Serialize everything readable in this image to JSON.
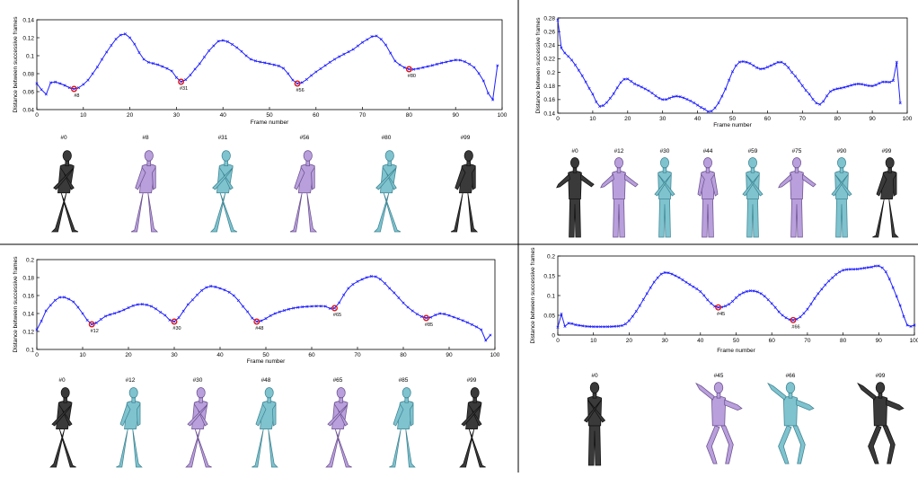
{
  "colors": {
    "line": "#2020ff",
    "marker": "#1a1aff",
    "highlight": "#e01010",
    "gray_figure": "#3a3a3a",
    "purple_figure": "#b9a0dc",
    "cyan_figure": "#7fc3cf",
    "divider": "#000000"
  },
  "panels": [
    {
      "chart_data": {
        "type": "line",
        "xlabel": "Frame number",
        "ylabel": "Distance between successive frames",
        "xlim": [
          0,
          100
        ],
        "ylim": [
          0.04,
          0.14
        ],
        "xticks": [
          "0",
          "10",
          "20",
          "30",
          "40",
          "50",
          "60",
          "70",
          "80",
          "90",
          "100"
        ],
        "yticks": [
          "0.04",
          "0.06",
          "0.08",
          "0.1",
          "0.12",
          "0.14"
        ],
        "anchors": [
          [
            0,
            0.069
          ],
          [
            2,
            0.057
          ],
          [
            3,
            0.07
          ],
          [
            5,
            0.069
          ],
          [
            8,
            0.063
          ],
          [
            10,
            0.068
          ],
          [
            12,
            0.08
          ],
          [
            15,
            0.104
          ],
          [
            18,
            0.123
          ],
          [
            20,
            0.12
          ],
          [
            23,
            0.096
          ],
          [
            26,
            0.09
          ],
          [
            29,
            0.083
          ],
          [
            31,
            0.071
          ],
          [
            34,
            0.085
          ],
          [
            38,
            0.111
          ],
          [
            40,
            0.117
          ],
          [
            43,
            0.109
          ],
          [
            46,
            0.096
          ],
          [
            50,
            0.091
          ],
          [
            53,
            0.086
          ],
          [
            56,
            0.069
          ],
          [
            60,
            0.082
          ],
          [
            64,
            0.096
          ],
          [
            68,
            0.107
          ],
          [
            71,
            0.118
          ],
          [
            73,
            0.122
          ],
          [
            75,
            0.112
          ],
          [
            77,
            0.094
          ],
          [
            80,
            0.085
          ],
          [
            84,
            0.088
          ],
          [
            88,
            0.093
          ],
          [
            91,
            0.095
          ],
          [
            94,
            0.087
          ],
          [
            96,
            0.072
          ],
          [
            98,
            0.051
          ],
          [
            99,
            0.089
          ]
        ],
        "highlights": [
          [
            8,
            0.063,
            "#8"
          ],
          [
            31,
            0.071,
            "#31"
          ],
          [
            56,
            0.069,
            "#56"
          ],
          [
            80,
            0.085,
            "#80"
          ]
        ]
      },
      "figures": [
        {
          "label": "#0",
          "color": "gray",
          "pose": "walk"
        },
        {
          "label": "#8",
          "color": "purple",
          "pose": "walk"
        },
        {
          "label": "#31",
          "color": "cyan",
          "pose": "walk"
        },
        {
          "label": "#56",
          "color": "purple",
          "pose": "walk"
        },
        {
          "label": "#80",
          "color": "cyan",
          "pose": "walk"
        },
        {
          "label": "#99",
          "color": "gray",
          "pose": "walk"
        }
      ]
    },
    {
      "chart_data": {
        "type": "line",
        "xlabel": "Frame number",
        "ylabel": "Distance between successive frames",
        "xlim": [
          0,
          100
        ],
        "ylim": [
          0.14,
          0.28
        ],
        "xticks": [
          "0",
          "10",
          "20",
          "30",
          "40",
          "50",
          "60",
          "70",
          "80",
          "90",
          "100"
        ],
        "yticks": [
          "0.14",
          "0.16",
          "0.18",
          "0.2",
          "0.22",
          "0.24",
          "0.26",
          "0.28"
        ],
        "anchors": [
          [
            0,
            0.277
          ],
          [
            1,
            0.236
          ],
          [
            4,
            0.218
          ],
          [
            7,
            0.195
          ],
          [
            10,
            0.168
          ],
          [
            12,
            0.15
          ],
          [
            15,
            0.162
          ],
          [
            19,
            0.19
          ],
          [
            22,
            0.183
          ],
          [
            26,
            0.173
          ],
          [
            30,
            0.16
          ],
          [
            34,
            0.165
          ],
          [
            38,
            0.158
          ],
          [
            42,
            0.146
          ],
          [
            44,
            0.143
          ],
          [
            47,
            0.165
          ],
          [
            51,
            0.21
          ],
          [
            54,
            0.215
          ],
          [
            58,
            0.205
          ],
          [
            61,
            0.21
          ],
          [
            64,
            0.215
          ],
          [
            67,
            0.2
          ],
          [
            72,
            0.168
          ],
          [
            75,
            0.153
          ],
          [
            78,
            0.172
          ],
          [
            82,
            0.178
          ],
          [
            86,
            0.183
          ],
          [
            90,
            0.18
          ],
          [
            93,
            0.186
          ],
          [
            96,
            0.188
          ],
          [
            97,
            0.215
          ],
          [
            98,
            0.155
          ]
        ],
        "highlights": []
      },
      "figures": [
        {
          "label": "#0",
          "color": "gray",
          "pose": "reach"
        },
        {
          "label": "#12",
          "color": "purple",
          "pose": "reach"
        },
        {
          "label": "#30",
          "color": "cyan",
          "pose": "stand"
        },
        {
          "label": "#44",
          "color": "purple",
          "pose": "stand"
        },
        {
          "label": "#59",
          "color": "cyan",
          "pose": "stand"
        },
        {
          "label": "#75",
          "color": "purple",
          "pose": "reach"
        },
        {
          "label": "#90",
          "color": "cyan",
          "pose": "stand"
        },
        {
          "label": "#99",
          "color": "gray",
          "pose": "walk"
        }
      ]
    },
    {
      "chart_data": {
        "type": "line",
        "xlabel": "Frame number",
        "ylabel": "Distance between successive frames",
        "xlim": [
          0,
          100
        ],
        "ylim": [
          0.1,
          0.2
        ],
        "xticks": [
          "0",
          "10",
          "20",
          "30",
          "40",
          "50",
          "60",
          "70",
          "80",
          "90",
          "100"
        ],
        "yticks": [
          "0.1",
          "0.12",
          "0.14",
          "0.16",
          "0.18",
          "0.2"
        ],
        "anchors": [
          [
            0,
            0.122
          ],
          [
            2,
            0.143
          ],
          [
            5,
            0.158
          ],
          [
            8,
            0.153
          ],
          [
            10,
            0.14
          ],
          [
            12,
            0.128
          ],
          [
            15,
            0.137
          ],
          [
            18,
            0.142
          ],
          [
            22,
            0.15
          ],
          [
            25,
            0.148
          ],
          [
            28,
            0.138
          ],
          [
            30,
            0.131
          ],
          [
            33,
            0.15
          ],
          [
            37,
            0.169
          ],
          [
            40,
            0.168
          ],
          [
            43,
            0.16
          ],
          [
            46,
            0.142
          ],
          [
            48,
            0.131
          ],
          [
            52,
            0.14
          ],
          [
            56,
            0.146
          ],
          [
            60,
            0.148
          ],
          [
            63,
            0.148
          ],
          [
            65,
            0.146
          ],
          [
            68,
            0.168
          ],
          [
            71,
            0.178
          ],
          [
            74,
            0.181
          ],
          [
            77,
            0.168
          ],
          [
            81,
            0.147
          ],
          [
            85,
            0.135
          ],
          [
            88,
            0.14
          ],
          [
            91,
            0.136
          ],
          [
            94,
            0.13
          ],
          [
            97,
            0.122
          ],
          [
            98,
            0.11
          ],
          [
            99,
            0.116
          ]
        ],
        "highlights": [
          [
            12,
            0.128,
            "#12"
          ],
          [
            30,
            0.131,
            "#30"
          ],
          [
            48,
            0.131,
            "#48"
          ],
          [
            65,
            0.146,
            "#65"
          ],
          [
            85,
            0.135,
            "#85"
          ]
        ]
      },
      "figures": [
        {
          "label": "#0",
          "color": "gray",
          "pose": "walk"
        },
        {
          "label": "#12",
          "color": "cyan",
          "pose": "walk"
        },
        {
          "label": "#30",
          "color": "purple",
          "pose": "walk"
        },
        {
          "label": "#48",
          "color": "cyan",
          "pose": "walk"
        },
        {
          "label": "#65",
          "color": "purple",
          "pose": "walk"
        },
        {
          "label": "#85",
          "color": "cyan",
          "pose": "walk"
        },
        {
          "label": "#99",
          "color": "gray",
          "pose": "walk"
        }
      ]
    },
    {
      "chart_data": {
        "type": "line",
        "xlabel": "Frame number",
        "ylabel": "Distance between successive frames",
        "xlim": [
          0,
          100
        ],
        "ylim": [
          0,
          0.2
        ],
        "xticks": [
          "0",
          "10",
          "20",
          "30",
          "40",
          "50",
          "60",
          "70",
          "80",
          "90",
          "100"
        ],
        "yticks": [
          "0",
          "0.05",
          "0.1",
          "0.15",
          "0.2"
        ],
        "anchors": [
          [
            0,
            0.02
          ],
          [
            1,
            0.053
          ],
          [
            2,
            0.022
          ],
          [
            3,
            0.03
          ],
          [
            5,
            0.026
          ],
          [
            8,
            0.022
          ],
          [
            12,
            0.021
          ],
          [
            16,
            0.022
          ],
          [
            19,
            0.028
          ],
          [
            22,
            0.06
          ],
          [
            25,
            0.105
          ],
          [
            28,
            0.145
          ],
          [
            30,
            0.158
          ],
          [
            33,
            0.15
          ],
          [
            37,
            0.128
          ],
          [
            40,
            0.11
          ],
          [
            43,
            0.08
          ],
          [
            45,
            0.07
          ],
          [
            48,
            0.078
          ],
          [
            51,
            0.102
          ],
          [
            54,
            0.112
          ],
          [
            57,
            0.105
          ],
          [
            60,
            0.08
          ],
          [
            63,
            0.05
          ],
          [
            66,
            0.038
          ],
          [
            69,
            0.055
          ],
          [
            73,
            0.105
          ],
          [
            77,
            0.145
          ],
          [
            80,
            0.164
          ],
          [
            84,
            0.167
          ],
          [
            88,
            0.172
          ],
          [
            90,
            0.175
          ],
          [
            92,
            0.16
          ],
          [
            94,
            0.12
          ],
          [
            96,
            0.075
          ],
          [
            98,
            0.025
          ],
          [
            100,
            0.025
          ]
        ],
        "highlights": [
          [
            45,
            0.07,
            "#45"
          ],
          [
            66,
            0.038,
            "#66"
          ]
        ]
      },
      "figures": [
        {
          "label": "#0",
          "color": "gray",
          "pose": "stand"
        },
        {
          "label": "#45",
          "color": "purple",
          "pose": "dance"
        },
        {
          "label": "#66",
          "color": "cyan",
          "pose": "dance"
        },
        {
          "label": "#99",
          "color": "gray",
          "pose": "dance"
        }
      ]
    }
  ]
}
